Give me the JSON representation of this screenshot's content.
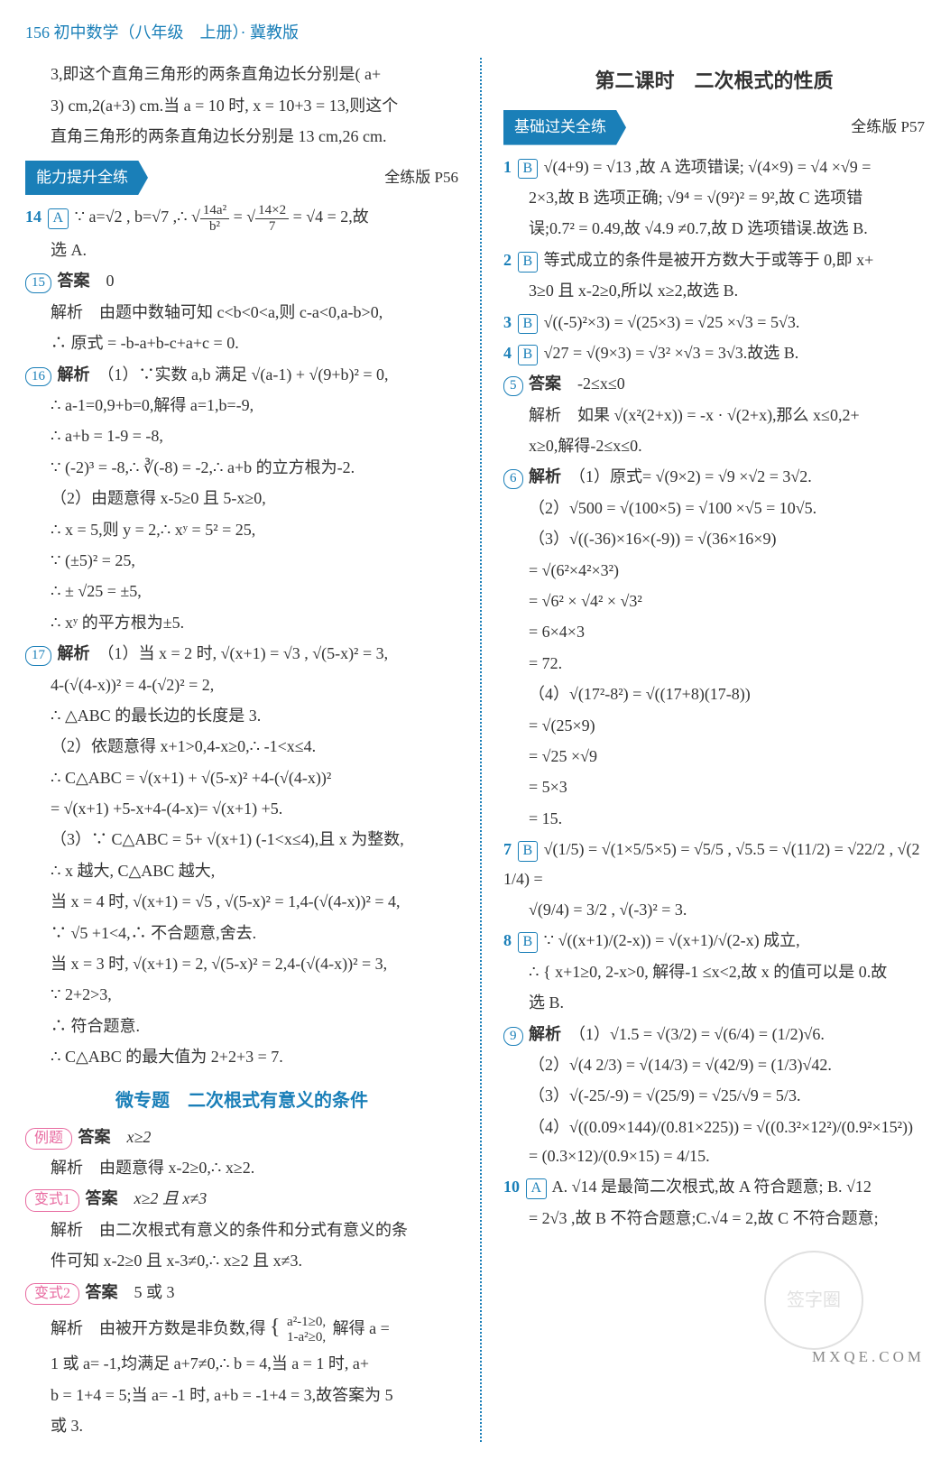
{
  "header": "156 初中数学（八年级　上册）· 冀教版",
  "left": {
    "intro1": "3,即这个直角三角形的两条直角边长分别是( a+",
    "intro2": "3) cm,2(a+3) cm.当 a = 10 时, x = 10+3 = 13,则这个",
    "intro3": "直角三角形的两条直角边长分别是 13 cm,26 cm.",
    "pill": "能力提升全练",
    "pageRef": "全练版 P56",
    "q14a": "14",
    "q14ans": "A",
    "q14t1": "∵ a=√2 , b=√7 ,∴",
    "q14frac_n1": "14a²",
    "q14frac_d1": "b²",
    "q14frac_n2": "14×2",
    "q14frac_d2": "7",
    "q14t2": " = √4 = 2,故",
    "q14t3": "选 A.",
    "q15": "15",
    "q15lbl": "答案",
    "q15ans": "0",
    "q15s1": "解析　由题中数轴可知 c<b<0<a,则 c-a<0,a-b>0,",
    "q15s2": "∴ 原式 = -b-a+b-c+a+c = 0.",
    "q16": "16",
    "q16lbl": "解析",
    "q16a": "（1）∵实数 a,b 满足 √(a-1) + √(9+b)² = 0,",
    "q16b": "∴ a-1=0,9+b=0,解得 a=1,b=-9,",
    "q16c": "∴ a+b = 1-9 = -8,",
    "q16d": "∵ (-2)³ = -8,∴ ∛(-8) = -2,∴ a+b 的立方根为-2.",
    "q16e": "（2）由题意得 x-5≥0 且 5-x≥0,",
    "q16f": "∴ x = 5,则 y = 2,∴ xʸ = 5² = 25,",
    "q16g": "∵ (±5)² = 25,",
    "q16h": "∴ ± √25 = ±5,",
    "q16i": "∴ xʸ 的平方根为±5.",
    "q17": "17",
    "q17lbl": "解析",
    "q17a": "（1）当 x = 2 时, √(x+1) = √3 , √(5-x)² = 3,",
    "q17b": "4-(√(4-x))² = 4-(√2)² = 2,",
    "q17c": "∴ △ABC 的最长边的长度是 3.",
    "q17d": "（2）依题意得 x+1>0,4-x≥0,∴ -1<x≤4.",
    "q17e": "∴ C△ABC = √(x+1) + √(5-x)² +4-(√(4-x))²",
    "q17f": "= √(x+1) +5-x+4-(4-x)= √(x+1) +5.",
    "q17g": "（3）∵ C△ABC = 5+ √(x+1) (-1<x≤4),且 x 为整数,",
    "q17h": "∴ x 越大, C△ABC 越大,",
    "q17i": "当 x = 4 时, √(x+1) = √5 , √(5-x)² = 1,4-(√(4-x))² = 4,",
    "q17j": "∵ √5 +1<4,∴ 不合题意,舍去.",
    "q17k": "当 x = 3 时, √(x+1) = 2, √(5-x)² = 2,4-(√(4-x))² = 3,",
    "q17l": "∵ 2+2>3,",
    "q17m": "∴ 符合题意.",
    "q17n": "∴ C△ABC 的最大值为 2+2+3 = 7.",
    "subhead": "微专题　二次根式有意义的条件",
    "ex": "例题",
    "exlbl": "答案",
    "exans": "x≥2",
    "exs1": "解析　由题意得 x-2≥0,∴ x≥2.",
    "v1": "变式1",
    "v1lbl": "答案",
    "v1ans": "x≥2 且 x≠3",
    "v1s1": "解析　由二次根式有意义的条件和分式有意义的条",
    "v1s2": "件可知 x-2≥0 且 x-3≠0,∴ x≥2 且 x≠3.",
    "v2": "变式2",
    "v2lbl": "答案",
    "v2ans": "5 或 3",
    "v2s1": "解析　由被开方数是非负数,得",
    "v2s1b": "a²-1≥0,",
    "v2s1c": "1-a²≥0,",
    "v2s1d": "解得 a =",
    "v2s2": "1 或 a= -1,均满足 a+7≠0,∴ b = 4,当 a = 1 时, a+",
    "v2s3": "b = 1+4 = 5;当 a= -1 时, a+b = -1+4 = 3,故答案为 5",
    "v2s4": "或 3."
  },
  "right": {
    "title": "第二课时　二次根式的性质",
    "pill": "基础过关全练",
    "pageRef": "全练版 P57",
    "q1": "1",
    "q1ans": "B",
    "q1a": "√(4+9) = √13 ,故 A 选项错误; √(4×9) = √4 ×√9 =",
    "q1b": "2×3,故 B 选项正确; √9⁴ = √(9²)² = 9²,故 C 选项错",
    "q1c": "误;0.7² = 0.49,故 √4.9 ≠0.7,故 D 选项错误.故选 B.",
    "q2": "2",
    "q2ans": "B",
    "q2a": "等式成立的条件是被开方数大于或等于 0,即 x+",
    "q2b": "3≥0 且 x-2≥0,所以 x≥2,故选 B.",
    "q3": "3",
    "q3ans": "B",
    "q3a": "√((-5)²×3) = √(25×3) = √25 ×√3 = 5√3.",
    "q4": "4",
    "q4ans": "B",
    "q4a": "√27 = √(9×3) = √3² ×√3 = 3√3.故选 B.",
    "q5": "5",
    "q5lbl": "答案",
    "q5ans": "-2≤x≤0",
    "q5b": "解析　如果 √(x²(2+x)) = -x · √(2+x),那么 x≤0,2+",
    "q5c": "x≥0,解得-2≤x≤0.",
    "q6": "6",
    "q6lbl": "解析",
    "q6a": "（1）原式= √(9×2) = √9 ×√2 = 3√2.",
    "q6b": "（2）√500 = √(100×5) = √100 ×√5 = 10√5.",
    "q6c": "（3）√((-36)×16×(-9)) = √(36×16×9)",
    "q6d": "= √(6²×4²×3²)",
    "q6e": "= √6² × √4² × √3²",
    "q6f": "= 6×4×3",
    "q6g": "= 72.",
    "q6h": "（4）√(17²-8²) = √((17+8)(17-8))",
    "q6i": "= √(25×9)",
    "q6j": "= √25 ×√9",
    "q6k": "= 5×3",
    "q6l": "= 15.",
    "q7": "7",
    "q7ans": "B",
    "q7a": "√(1/5) = √(1×5/5×5) = √5/5 , √5.5 = √(11/2) = √22/2 , √(2 1/4) =",
    "q7b": "√(9/4) = 3/2 , √(-3)² = 3.",
    "q8": "8",
    "q8ans": "B",
    "q8a": "∵ √((x+1)/(2-x)) = √(x+1)/√(2-x) 成立,",
    "q8b": "∴ { x+1≥0, 2-x>0, 解得-1 ≤x<2,故 x 的值可以是 0.故",
    "q8c": "选 B.",
    "q9": "9",
    "q9lbl": "解析",
    "q9a": "（1）√1.5 = √(3/2) = √(6/4) = (1/2)√6.",
    "q9b": "（2）√(4 2/3) = √(14/3) = √(42/9) = (1/3)√42.",
    "q9c": "（3）√(-25/-9) = √(25/9) = √25/√9 = 5/3.",
    "q9d": "（4）√((0.09×144)/(0.81×225)) = √((0.3²×12²)/(0.9²×15²)) = (0.3×12)/(0.9×15) = 4/15.",
    "q10": "10",
    "q10ans": "A",
    "q10a": "A. √14 是最简二次根式,故 A 符合题意; B. √12",
    "q10b": "= 2√3 ,故 B 不符合题意;C.√4 = 2,故 C 不符合题意;"
  },
  "wm": "MXQE.COM",
  "wmcirc": "签字圈"
}
